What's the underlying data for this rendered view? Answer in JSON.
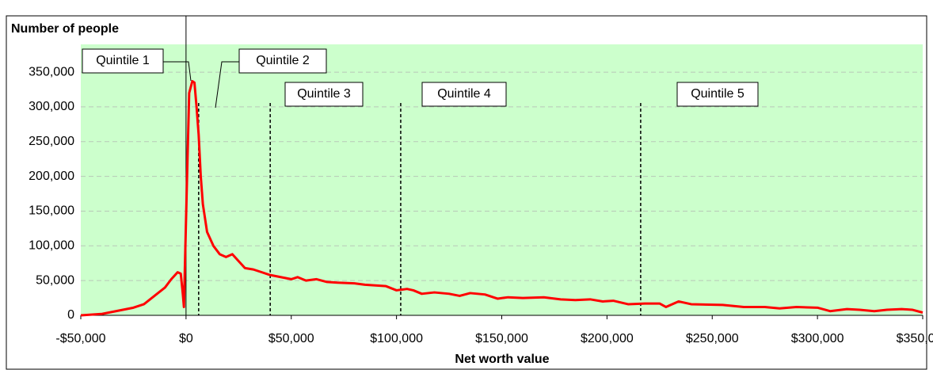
{
  "chart_data": {
    "type": "line",
    "y_axis_label": "Number of people",
    "x_axis_label": "Net worth value",
    "annotations": [
      "Quintile 1",
      "Quintile 2",
      "Quintile 3",
      "Quintile 4",
      "Quintile 5"
    ],
    "boundaries": [
      6000,
      40000,
      102000,
      216000
    ],
    "xlim": [
      -50000,
      350000
    ],
    "ylim": [
      0,
      390000
    ],
    "xticks": [
      {
        "value": -50000,
        "label": "-$50,000"
      },
      {
        "value": 0,
        "label": "$0"
      },
      {
        "value": 50000,
        "label": "$50,000"
      },
      {
        "value": 100000,
        "label": "$100,000"
      },
      {
        "value": 150000,
        "label": "$150,000"
      },
      {
        "value": 200000,
        "label": "$200,000"
      },
      {
        "value": 250000,
        "label": "$250,000"
      },
      {
        "value": 300000,
        "label": "$300,000"
      },
      {
        "value": 350000,
        "label": "$350,000"
      }
    ],
    "yticks": [
      0,
      {
        "value": 50000,
        "label": "50,000"
      },
      {
        "value": 100000,
        "label": "100,000"
      },
      {
        "value": 150000,
        "label": "150,000"
      },
      {
        "value": 200000,
        "label": "200,000"
      },
      {
        "value": 250000,
        "label": "250,000"
      },
      {
        "value": 300000,
        "label": "300,000"
      },
      {
        "value": 350000,
        "label": "350,000"
      }
    ],
    "grid": true,
    "background": "#ccffcc",
    "color": "#ff0000",
    "x": [
      -50000,
      -40000,
      -30000,
      -25000,
      -20000,
      -15000,
      -10000,
      -7000,
      -4000,
      -2500,
      -1500,
      -1000,
      500,
      1500,
      3000,
      4000,
      5000,
      6000,
      7000,
      8000,
      10000,
      13000,
      16000,
      19000,
      22000,
      25000,
      28000,
      32000,
      36000,
      40000,
      45000,
      50000,
      53000,
      57000,
      62000,
      67000,
      72000,
      80000,
      85000,
      95000,
      100000,
      105000,
      108000,
      112000,
      118000,
      125000,
      130000,
      135000,
      142000,
      148000,
      153000,
      160000,
      170000,
      178000,
      185000,
      192000,
      198000,
      203000,
      210000,
      218000,
      225000,
      228000,
      234000,
      240000,
      255000,
      265000,
      275000,
      282000,
      290000,
      300000,
      306000,
      314000,
      320000,
      327000,
      333000,
      340000,
      345000,
      350000
    ],
    "values": [
      0,
      2000,
      8000,
      11000,
      16000,
      28000,
      40000,
      52000,
      62000,
      60000,
      30000,
      12000,
      200000,
      320000,
      337000,
      335000,
      300000,
      260000,
      200000,
      160000,
      120000,
      100000,
      88000,
      84000,
      88000,
      78000,
      68000,
      66000,
      62000,
      58000,
      55000,
      52000,
      55000,
      50000,
      52000,
      48000,
      47000,
      46000,
      44000,
      42000,
      36000,
      38000,
      36000,
      31000,
      33000,
      31000,
      28000,
      32000,
      30000,
      24000,
      26000,
      25000,
      26000,
      23000,
      22000,
      23000,
      20000,
      21000,
      16000,
      17000,
      17000,
      12000,
      20000,
      16000,
      15000,
      12000,
      12000,
      10000,
      12000,
      11000,
      6000,
      9000,
      8000,
      6000,
      8000,
      9000,
      8000,
      4000
    ]
  }
}
